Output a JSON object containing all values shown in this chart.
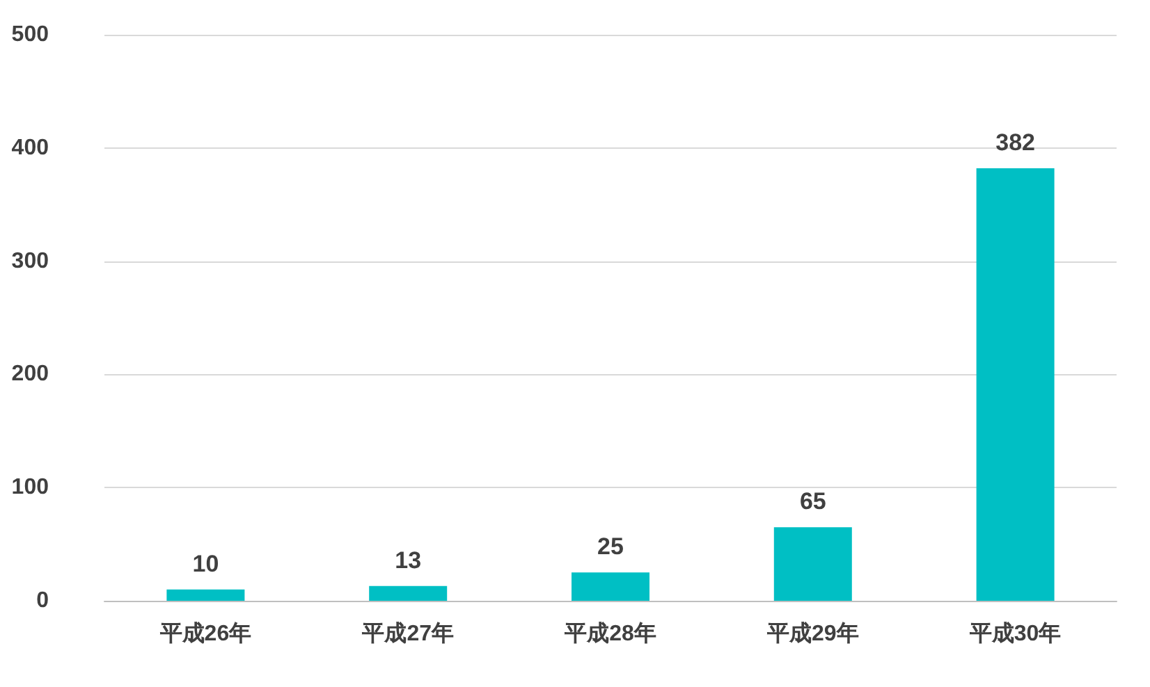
{
  "chart_data": {
    "type": "bar",
    "categories": [
      "平成26年",
      "平成27年",
      "平成28年",
      "平成29年",
      "平成30年"
    ],
    "values": [
      10,
      13,
      25,
      65,
      382
    ],
    "color": "#00bfc4",
    "ylim": [
      0,
      500
    ],
    "yticks": [
      0,
      100,
      200,
      300,
      400,
      500
    ],
    "grid": "y",
    "data_labels": true
  }
}
